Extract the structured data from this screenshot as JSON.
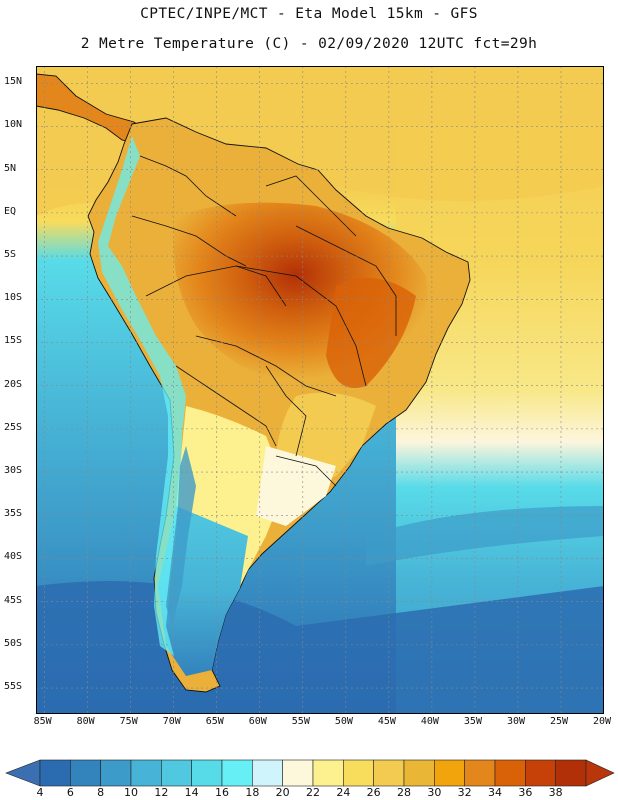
{
  "title": {
    "line1": "CPTEC/INPE/MCT -  Eta Model 15km - GFS",
    "line2": "2 Metre Temperature (C) - 02/09/2020 12UTC fct=29h"
  },
  "latitude_labels": [
    "15N",
    "10N",
    "5N",
    "EQ",
    "5S",
    "10S",
    "15S",
    "20S",
    "25S",
    "30S",
    "35S",
    "40S",
    "45S",
    "50S",
    "55S"
  ],
  "longitude_labels": [
    "85W",
    "80W",
    "75W",
    "70W",
    "65W",
    "60W",
    "55W",
    "50W",
    "45W",
    "40W",
    "35W",
    "30W",
    "25W",
    "20W"
  ],
  "colorbar": {
    "labels": [
      "4",
      "6",
      "8",
      "10",
      "12",
      "14",
      "16",
      "18",
      "20",
      "22",
      "24",
      "26",
      "28",
      "30",
      "32",
      "34",
      "36",
      "38"
    ],
    "colors": [
      "#2b6cb0",
      "#3383bd",
      "#3d9bc9",
      "#47b3d6",
      "#50c8e0",
      "#58dbe8",
      "#66f0f5",
      "#d0f4fb",
      "#fdf7dc",
      "#fdf08e",
      "#f8dc5c",
      "#f3cb50",
      "#eab635",
      "#f1a40c",
      "#e3861b",
      "#d96208",
      "#c54107",
      "#b23008"
    ]
  },
  "palette": {
    "ocean_deep": "#2a6ab1",
    "ocean_mid": "#3a96c6",
    "ocean_cool": "#46b1d4",
    "ocean_warm": "#55d8e7",
    "pale": "#fdf5dc",
    "yellow": "#f6d65a",
    "orange": "#eab03a",
    "land_hot": "#e07b1a",
    "land_hotter": "#cf5e0e",
    "andes": "#7ee5f2"
  }
}
